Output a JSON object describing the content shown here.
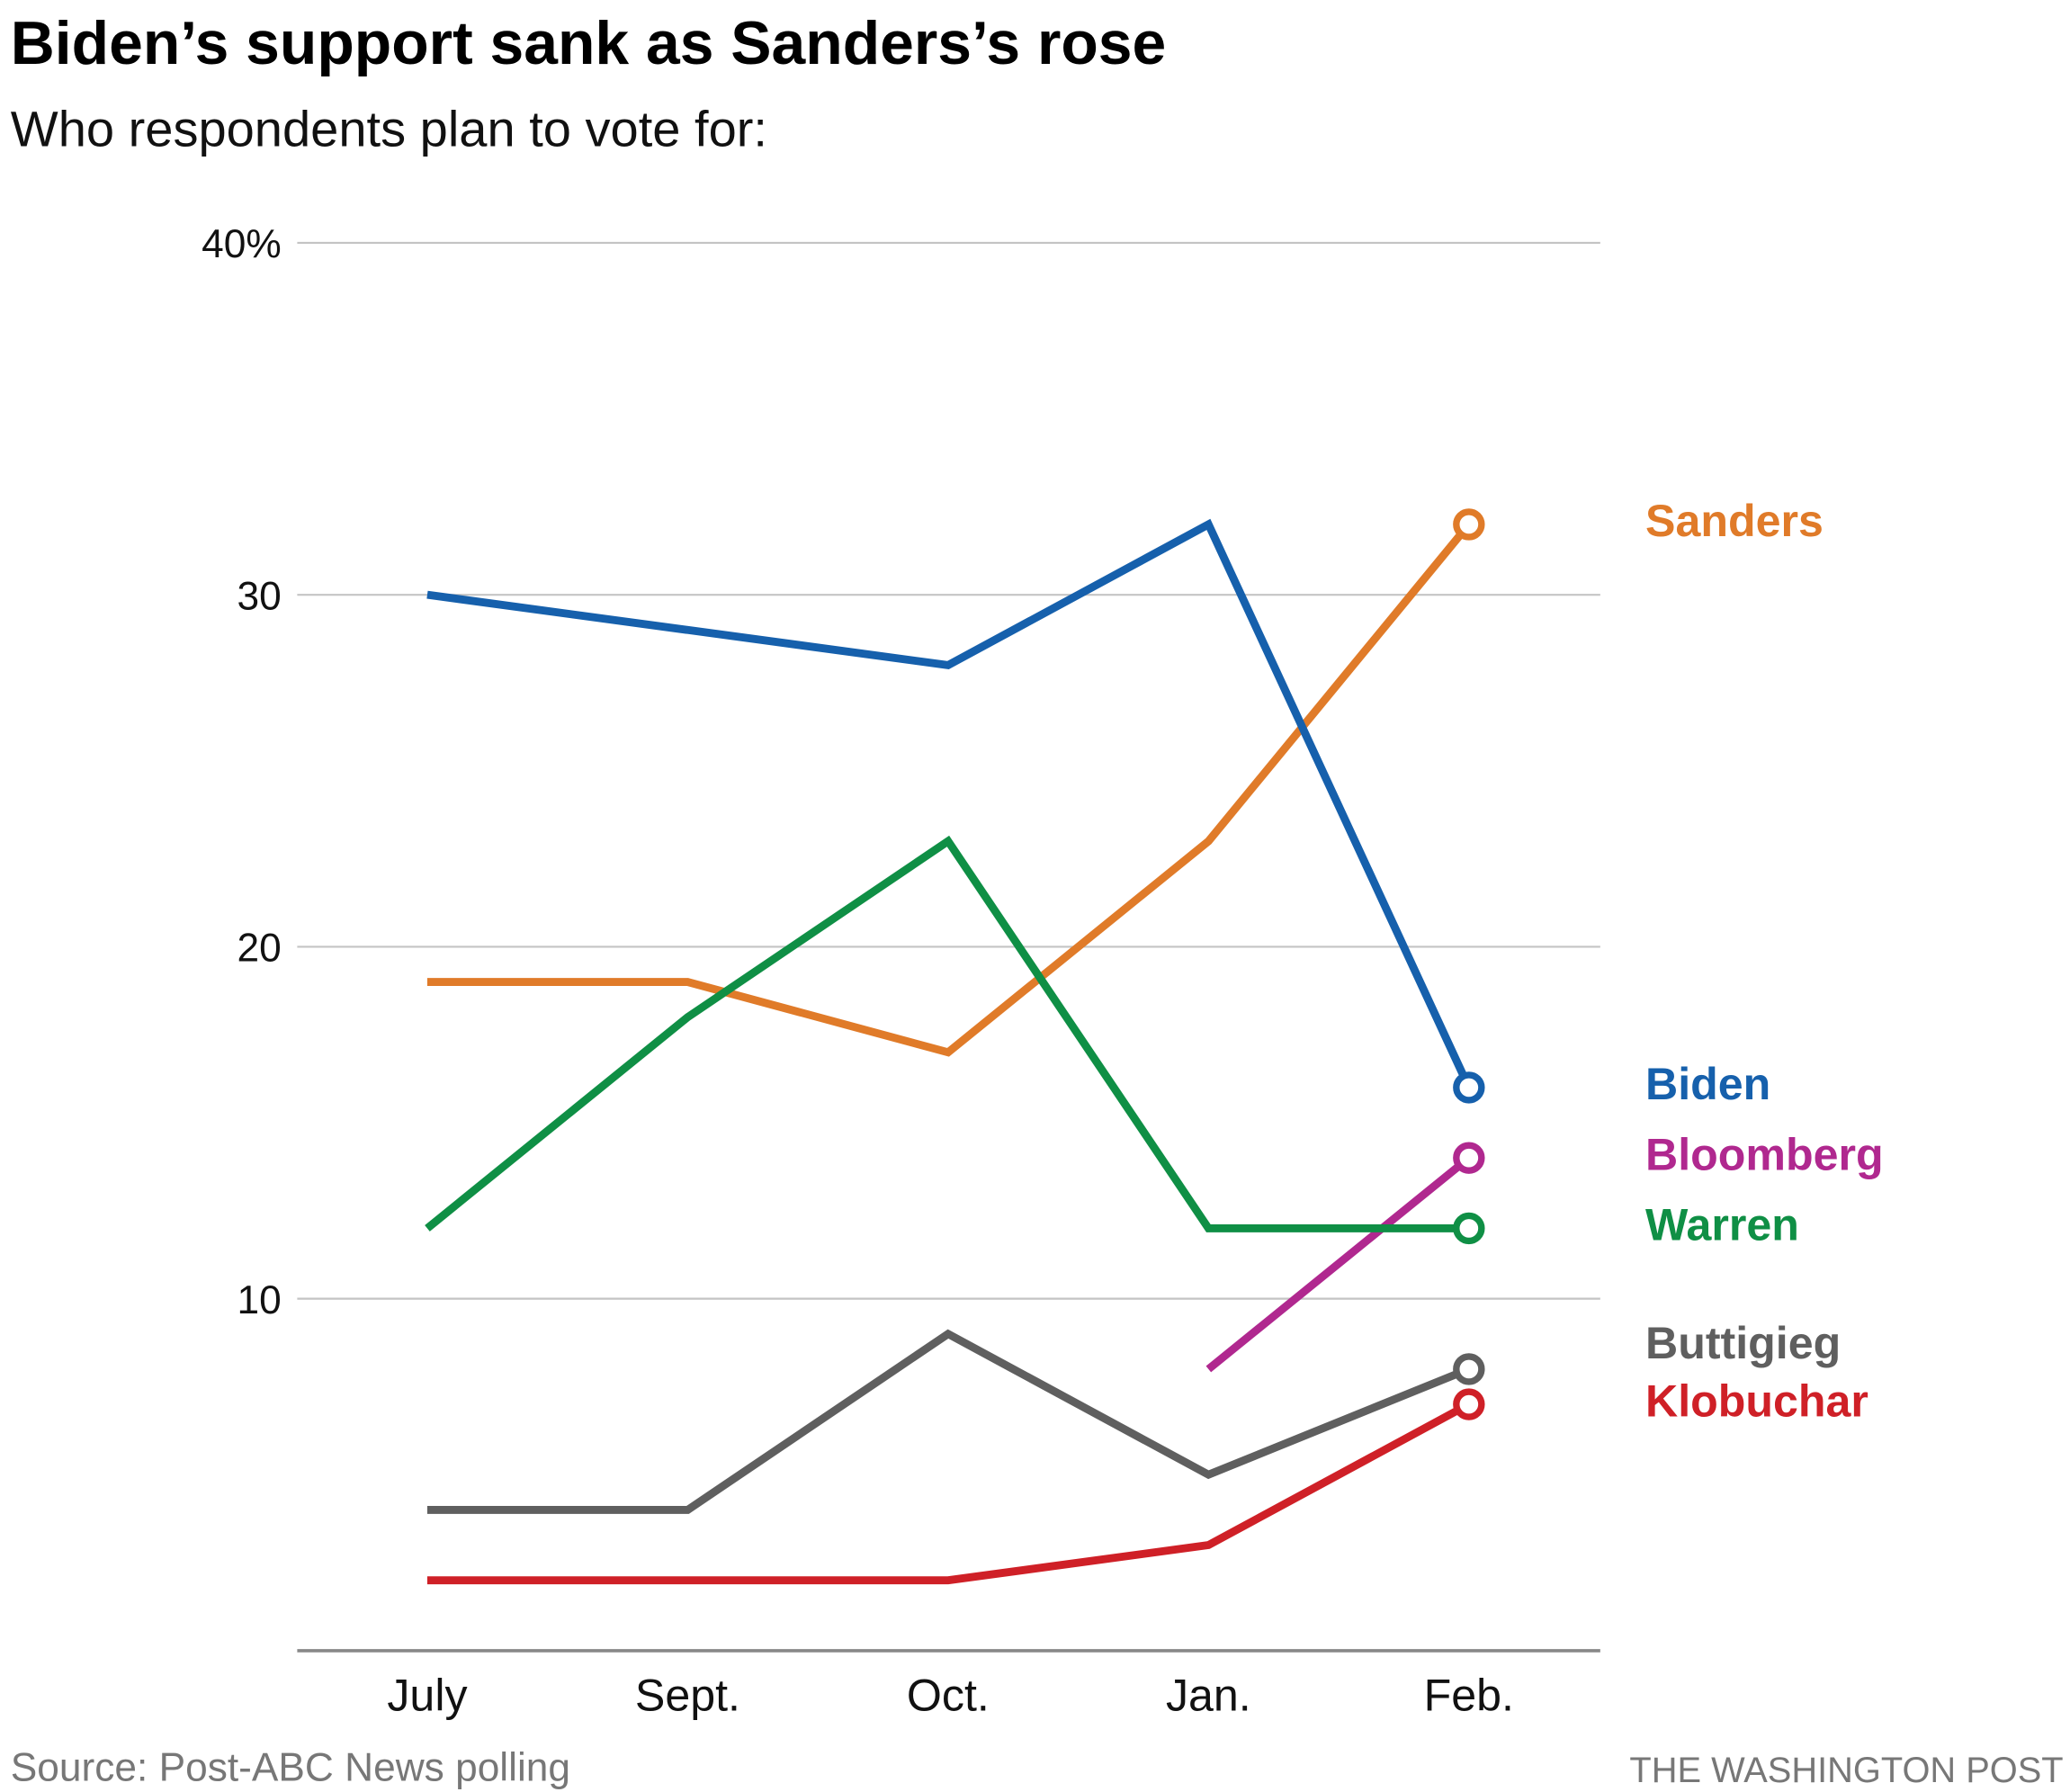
{
  "chart_data": {
    "type": "line",
    "title": "Biden’s support sank as Sanders’s rose",
    "subtitle": "Who respondents plan to vote for:",
    "source": "Source: Post-ABC News polling",
    "credit": "THE WASHINGTON POST",
    "categories": [
      "July",
      "Sept.",
      "Oct.",
      "Jan.",
      "Feb."
    ],
    "series": [
      {
        "name": "Sanders",
        "color": "#e07b29",
        "values": [
          19,
          19,
          17,
          23,
          32
        ]
      },
      {
        "name": "Biden",
        "color": "#1660ac",
        "values": [
          30,
          29,
          28,
          32,
          16
        ]
      },
      {
        "name": "Bloomberg",
        "color": "#b0288f",
        "values": [
          null,
          null,
          null,
          8,
          14
        ]
      },
      {
        "name": "Warren",
        "color": "#0f8f45",
        "values": [
          12,
          18,
          23,
          12,
          12
        ]
      },
      {
        "name": "Buttigieg",
        "color": "#5f5f5f",
        "values": [
          4,
          4,
          9,
          5,
          8
        ]
      },
      {
        "name": "Klobuchar",
        "color": "#cf2027",
        "values": [
          2,
          2,
          2,
          3,
          7
        ]
      }
    ],
    "ylim": [
      0,
      40
    ],
    "yticks": [
      {
        "value": 40,
        "label": "40%"
      },
      30,
      20,
      10
    ],
    "grid": true
  }
}
